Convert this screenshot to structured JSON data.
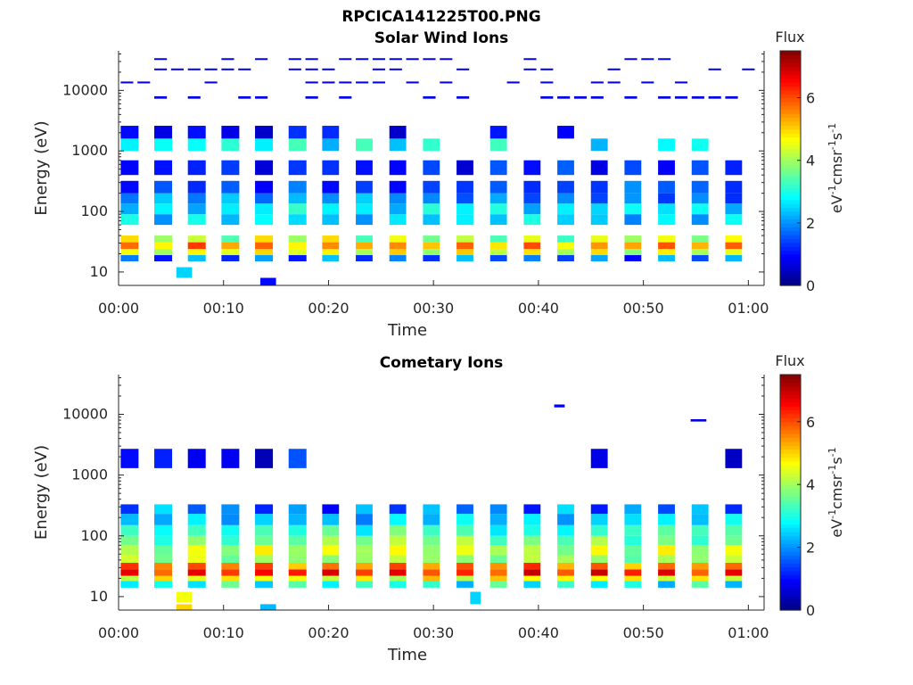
{
  "figure_title": "RPCICA141225T00.PNG",
  "chart_data": [
    {
      "type": "heatmap",
      "title": "Solar Wind Ions",
      "xlabel": "Time",
      "ylabel": "Energy (eV)",
      "x_ticks": [
        "00:00",
        "00:10",
        "00:20",
        "00:30",
        "00:40",
        "00:50",
        "01:00"
      ],
      "x_range_min": [
        0,
        61.5
      ],
      "y_ticks": [
        10,
        100,
        1000,
        10000
      ],
      "y_tick_labels": [
        "10",
        "100",
        "1000",
        "10000"
      ],
      "y_range_eV": [
        6,
        45000
      ],
      "y_scale": "log",
      "colorbar": {
        "label": "Flux",
        "unit": "eV-1cm-2sr-1s-1",
        "range": [
          0,
          7.5
        ],
        "ticks": [
          "0",
          "2",
          "4",
          "6"
        ],
        "colormap": "jet"
      },
      "bands": [
        {
          "e": [
            6,
            8
          ],
          "v": 1.0,
          "when": [
            [
              13.5,
              15
            ]
          ],
          "alt": null
        },
        {
          "e": [
            8,
            12
          ],
          "v": 2.5,
          "when": [
            [
              5.5,
              7
            ]
          ],
          "alt": null
        },
        {
          "e": [
            15,
            19
          ],
          "v": 2.0,
          "every": "scan",
          "alt": 1.3
        },
        {
          "e": [
            19,
            24
          ],
          "v": 4.9,
          "every": "scan",
          "alt": 4.2
        },
        {
          "e": [
            24,
            31
          ],
          "v": 5.8,
          "every": "scan",
          "alt": 5.0
        },
        {
          "e": [
            31,
            40
          ],
          "v": 4.6,
          "every": "scan",
          "alt": 3.6
        },
        {
          "e": [
            60,
            90
          ],
          "v": 2.7,
          "every": "scan",
          "alt": 2.2
        },
        {
          "e": [
            90,
            135
          ],
          "v": 2.4,
          "every": "scan",
          "alt": 2.9
        },
        {
          "e": [
            135,
            200
          ],
          "v": 1.6,
          "every": "scan",
          "alt": 2.3
        },
        {
          "e": [
            200,
            320
          ],
          "v": 1.3,
          "every": "scan",
          "alt": 1.8
        },
        {
          "e": [
            400,
            700
          ],
          "v": 0.9,
          "every": "scan",
          "alt": 1.4
        },
        {
          "e": [
            1000,
            1600
          ],
          "v": 2.6,
          "every": "scan",
          "alt": 3.0
        },
        {
          "e": [
            1600,
            2600
          ],
          "v": 0.9,
          "every": "scan",
          "alt": 1.1
        },
        {
          "e": [
            6500,
            8000
          ],
          "v": 0.8,
          "sparse": true
        },
        {
          "e": [
            12000,
            14000
          ],
          "v": 0.8,
          "sparse": true
        },
        {
          "e": [
            20000,
            23000
          ],
          "v": 0.8,
          "sparse": true
        },
        {
          "e": [
            30000,
            34000
          ],
          "v": 0.8,
          "sparse": true
        }
      ]
    },
    {
      "type": "heatmap",
      "title": "Cometary Ions",
      "xlabel": "Time",
      "ylabel": "Energy (eV)",
      "x_ticks": [
        "00:00",
        "00:10",
        "00:20",
        "00:30",
        "00:40",
        "00:50",
        "01:00"
      ],
      "x_range_min": [
        0,
        61.5
      ],
      "y_ticks": [
        10,
        100,
        1000,
        10000
      ],
      "y_tick_labels": [
        "10",
        "100",
        "1000",
        "10000"
      ],
      "y_range_eV": [
        6,
        45000
      ],
      "y_scale": "log",
      "colorbar": {
        "label": "Flux",
        "unit": "eV-1cm-2sr-1s-1",
        "range": [
          0,
          7.5
        ],
        "ticks": [
          "0",
          "2",
          "4",
          "6"
        ],
        "colormap": "jet"
      },
      "bands": [
        {
          "e": [
            6,
            7.5
          ],
          "v": 5.0,
          "when": [
            [
              5.5,
              7
            ]
          ],
          "alt": null
        },
        {
          "e": [
            6,
            7.5
          ],
          "v": 2.3,
          "when": [
            [
              13.5,
              15
            ]
          ],
          "alt": null
        },
        {
          "e": [
            7.5,
            12
          ],
          "v": 2.5,
          "when": [
            [
              33.5,
              34.5
            ]
          ],
          "alt": null
        },
        {
          "e": [
            8,
            12
          ],
          "v": 4.6,
          "when": [
            [
              5.5,
              7
            ]
          ],
          "alt": null
        },
        {
          "e": [
            14,
            18
          ],
          "v": 2.6,
          "every": "scan",
          "alt": 3.3
        },
        {
          "e": [
            18,
            22
          ],
          "v": 4.4,
          "every": "scan",
          "alt": 4.9
        },
        {
          "e": [
            22,
            28
          ],
          "v": 6.6,
          "every": "scan",
          "alt": 6.0
        },
        {
          "e": [
            28,
            36
          ],
          "v": 6.0,
          "every": "scan",
          "alt": 5.4
        },
        {
          "e": [
            36,
            48
          ],
          "v": 4.2,
          "every": "scan",
          "alt": 3.8
        },
        {
          "e": [
            48,
            70
          ],
          "v": 4.5,
          "every": "scan",
          "alt": 3.9
        },
        {
          "e": [
            70,
            100
          ],
          "v": 4.0,
          "every": "scan",
          "alt": 3.4
        },
        {
          "e": [
            100,
            150
          ],
          "v": 3.4,
          "every": "scan",
          "alt": 3.0
        },
        {
          "e": [
            150,
            230
          ],
          "v": 2.6,
          "every": "scan",
          "alt": 2.2
        },
        {
          "e": [
            230,
            330
          ],
          "v": 1.3,
          "every": "scan",
          "alt": 2.3
        },
        {
          "e": [
            1300,
            2700
          ],
          "v": 0.6,
          "every": "scan",
          "alt": 1.2
        },
        {
          "e": [
            7600,
            8300
          ],
          "v": 0.7,
          "when": [
            [
              54.5,
              56
            ]
          ],
          "alt": null
        },
        {
          "e": [
            13000,
            14500
          ],
          "v": 0.9,
          "when": [
            [
              41.5,
              42.5
            ]
          ],
          "alt": null
        }
      ]
    }
  ]
}
